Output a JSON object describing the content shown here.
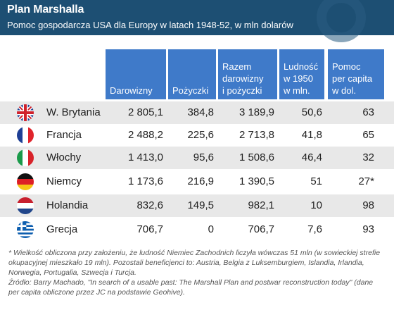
{
  "title": "Plan Marshalla",
  "subtitle": "Pomoc gospodarcza USA dla Europy w latach 1948-52, w mln dolarów",
  "columns": [
    {
      "lines": [
        "Darowizny"
      ]
    },
    {
      "lines": [
        "Pożyczki"
      ]
    },
    {
      "lines": [
        "Razem",
        "darowizny",
        "i pożyczki"
      ]
    },
    {
      "lines": [
        "Ludność",
        "w 1950",
        "w mln."
      ]
    },
    {
      "lines": [
        "Pomoc",
        "per capita",
        "w dol."
      ]
    }
  ],
  "rows": [
    {
      "country": "W. Brytania",
      "flag": "uk-flag-icon",
      "darowizny": "2 805,1",
      "pozyczki": "384,8",
      "razem": "3 189,9",
      "ludnosc": "50,6",
      "per_capita": "63"
    },
    {
      "country": "Francja",
      "flag": "france-flag-icon",
      "darowizny": "2 488,2",
      "pozyczki": "225,6",
      "razem": "2 713,8",
      "ludnosc": "41,8",
      "per_capita": "65"
    },
    {
      "country": "Włochy",
      "flag": "italy-flag-icon",
      "darowizny": "1 413,0",
      "pozyczki": "95,6",
      "razem": "1 508,6",
      "ludnosc": "46,4",
      "per_capita": "32"
    },
    {
      "country": "Niemcy",
      "flag": "germany-flag-icon",
      "darowizny": "1 173,6",
      "pozyczki": "216,9",
      "razem": "1 390,5",
      "ludnosc": "51",
      "per_capita": "27*"
    },
    {
      "country": "Holandia",
      "flag": "netherlands-flag-icon",
      "darowizny": "832,6",
      "pozyczki": "149,5",
      "razem": "982,1",
      "ludnosc": "10",
      "per_capita": "98"
    },
    {
      "country": "Grecja",
      "flag": "greece-flag-icon",
      "darowizny": "706,7",
      "pozyczki": "0",
      "razem": "706,7",
      "ludnosc": "7,6",
      "per_capita": "93"
    }
  ],
  "footnote": {
    "note": "* Wielkość obliczona przy założeniu, że ludność Niemiec Zachodnich liczyła wówczas 51 mln (w sowieckiej strefie okupacyjnej mieszkało 19 mln). Pozostali beneficjenci to: Austria, Belgia z Luksemburgiem, Islandia, Irlandia, Norwegia, Portugalia, Szwecja i Turcja.",
    "source": "Źródło: Barry Machado, \"In search of a usable past: The Marshall Plan and postwar reconstruction today\" (dane per capita obliczone przez JC na podstawie Geohive)."
  },
  "colors": {
    "header_bg": "#1d4f73",
    "column_header_bg": "#3f7ac9",
    "row_shade": "#e8e8e8"
  }
}
